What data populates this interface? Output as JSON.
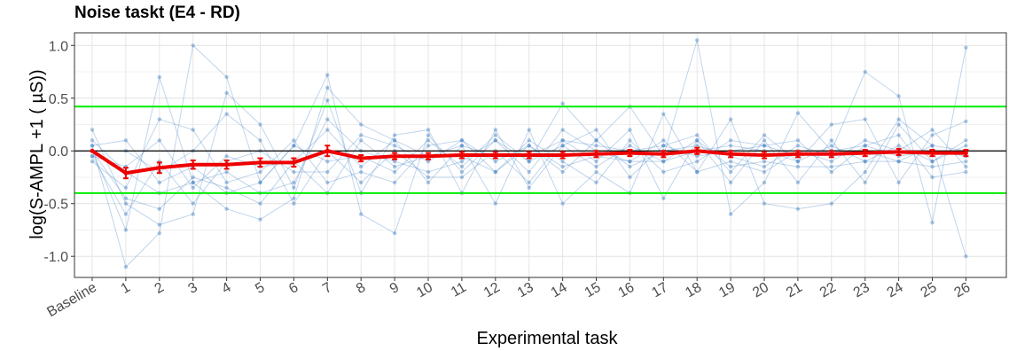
{
  "chart_data": {
    "type": "line",
    "title": "Noise taskt (E4 - RD)",
    "xlabel": "Experimental task",
    "ylabel": "log(S-AMPL +1 ( µS))",
    "categories": [
      "Baseline",
      "1",
      "2",
      "3",
      "4",
      "5",
      "6",
      "7",
      "8",
      "9",
      "10",
      "11",
      "12",
      "13",
      "14",
      "15",
      "16",
      "17",
      "18",
      "19",
      "20",
      "21",
      "22",
      "23",
      "24",
      "25",
      "26"
    ],
    "ylim": [
      -1.2,
      1.12
    ],
    "yticks": [
      -1.0,
      -0.5,
      0.0,
      0.5,
      1.0
    ],
    "ytick_labels": [
      "-1.0",
      "-0.5",
      "0.0",
      "0.5",
      "1.0"
    ],
    "grid": true,
    "legend": "none",
    "hlines": [
      {
        "y": 0.42,
        "color": "#00ee00"
      },
      {
        "y": -0.4,
        "color": "#00ee00"
      },
      {
        "y": 0.0,
        "color": "#000000"
      }
    ],
    "mean_series": {
      "color": "#ee0000",
      "values": [
        0.0,
        -0.21,
        -0.16,
        -0.13,
        -0.13,
        -0.11,
        -0.11,
        0.0,
        -0.07,
        -0.05,
        -0.05,
        -0.04,
        -0.04,
        -0.04,
        -0.04,
        -0.03,
        -0.02,
        -0.03,
        0.0,
        -0.03,
        -0.04,
        -0.03,
        -0.03,
        -0.02,
        -0.01,
        -0.02,
        -0.02
      ],
      "errors": [
        0.0,
        0.05,
        0.05,
        0.04,
        0.04,
        0.04,
        0.04,
        0.05,
        0.03,
        0.03,
        0.03,
        0.03,
        0.03,
        0.03,
        0.03,
        0.03,
        0.03,
        0.03,
        0.03,
        0.03,
        0.03,
        0.03,
        0.03,
        0.03,
        0.03,
        0.03,
        0.03
      ]
    },
    "subject_series": [
      {
        "values": [
          0.05,
          -1.1,
          -0.78,
          1.0,
          0.7,
          -0.3,
          0.05,
          0.72,
          -0.6,
          -0.78,
          0.15,
          -0.2,
          0.1,
          -0.1,
          0.45,
          0.1,
          0.42,
          -0.05,
          1.05,
          -0.6,
          -0.3,
          0.36,
          0.0,
          0.75,
          0.52,
          -0.68,
          0.98
        ]
      },
      {
        "values": [
          0.0,
          -0.75,
          0.7,
          -0.3,
          -0.55,
          -0.65,
          -0.45,
          0.6,
          0.25,
          0.1,
          -0.3,
          0.05,
          -0.5,
          0.2,
          -0.5,
          -0.2,
          -0.4,
          0.35,
          -0.2,
          0.3,
          -0.5,
          -0.55,
          -0.5,
          -0.2,
          0.3,
          0.05,
          -1.0
        ]
      },
      {
        "values": [
          0.2,
          -0.5,
          -0.7,
          -0.6,
          0.55,
          0.25,
          -0.35,
          0.48,
          -0.4,
          0.15,
          0.2,
          -0.4,
          0.2,
          -0.35,
          0.05,
          0.2,
          -0.25,
          0.05,
          0.15,
          -0.2,
          0.15,
          -0.1,
          0.25,
          0.3,
          -0.3,
          0.15,
          0.28
        ]
      },
      {
        "values": [
          -0.1,
          -0.35,
          0.3,
          0.2,
          -0.3,
          -0.2,
          0.1,
          -0.3,
          -0.2,
          -0.3,
          0.05,
          0.1,
          -0.2,
          0.1,
          -0.1,
          -0.3,
          0.1,
          -0.2,
          -0.1,
          0.1,
          0.05,
          0.1,
          -0.2,
          0.05,
          0.15,
          -0.25,
          -0.2
        ]
      },
      {
        "values": [
          0.1,
          -0.2,
          -0.4,
          -0.3,
          -0.2,
          -0.4,
          -0.3,
          0.3,
          0.0,
          -0.1,
          -0.2,
          -0.1,
          0.1,
          -0.2,
          0.2,
          0.0,
          -0.1,
          0.1,
          -0.2,
          -0.1,
          -0.2,
          0.0,
          -0.1,
          0.1,
          0.0,
          0.2,
          -0.15
        ]
      },
      {
        "values": [
          0.0,
          0.0,
          -0.2,
          0.0,
          0.35,
          0.1,
          -0.5,
          0.0,
          -0.3,
          0.0,
          -0.25,
          -0.25,
          0.0,
          -0.3,
          0.1,
          -0.1,
          0.2,
          -0.45,
          0.1,
          -0.3,
          0.1,
          -0.3,
          0.1,
          -0.3,
          0.25,
          -0.1,
          0.1
        ]
      },
      {
        "values": [
          -0.05,
          -0.6,
          -0.1,
          -0.5,
          -0.1,
          0.0,
          -0.2,
          -0.2,
          0.15,
          0.05,
          -0.1,
          0.1,
          -0.1,
          0.05,
          -0.2,
          0.1,
          -0.15,
          0.0,
          0.05,
          -0.05,
          -0.15,
          0.05,
          -0.05,
          0.0,
          -0.1,
          0.05,
          0.0
        ]
      },
      {
        "values": [
          0.05,
          0.1,
          -0.3,
          -0.15,
          -0.4,
          -0.3,
          0.05,
          -0.1,
          -0.05,
          -0.2,
          0.1,
          -0.15,
          0.15,
          -0.1,
          0.05,
          -0.15,
          0.05,
          -0.1,
          0.0,
          0.05,
          0.0,
          -0.1,
          0.05,
          -0.1,
          0.05,
          -0.1,
          0.05
        ]
      },
      {
        "values": [
          -0.05,
          -0.15,
          0.1,
          -0.35,
          -0.05,
          -0.15,
          -0.1,
          0.2,
          -0.15,
          0.1,
          -0.05,
          0.05,
          -0.05,
          -0.05,
          0.1,
          0.05,
          0.0,
          0.05,
          -0.05,
          0.0,
          0.05,
          -0.05,
          0.0,
          0.05,
          -0.05,
          0.0,
          -0.05
        ]
      },
      {
        "values": [
          0.0,
          -0.45,
          -0.55,
          -0.25,
          -0.35,
          -0.5,
          -0.1,
          -0.4,
          0.1,
          -0.15,
          -0.05,
          -0.05,
          -0.2,
          0.05,
          -0.15,
          -0.05,
          -0.1,
          -0.1,
          0.1,
          -0.15,
          -0.1,
          -0.15,
          -0.15,
          -0.1,
          -0.1,
          -0.15,
          -0.1
        ]
      }
    ]
  }
}
